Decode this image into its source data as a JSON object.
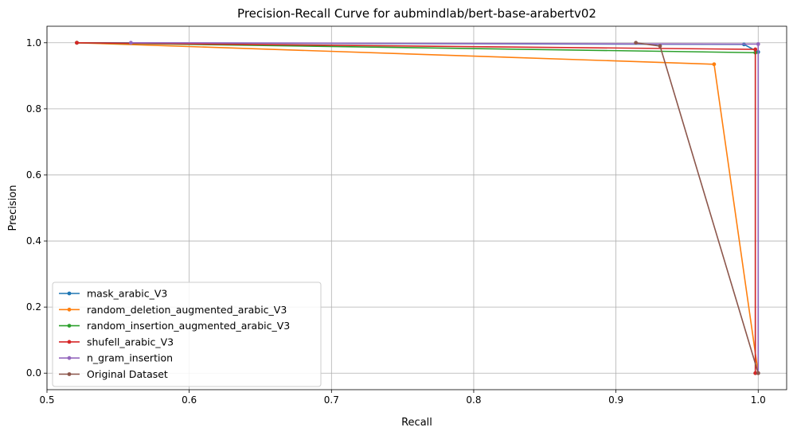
{
  "chart_data": {
    "type": "line",
    "title": "Precision-Recall Curve for aubmindlab/bert-base-arabertv02",
    "xlabel": "Recall",
    "ylabel": "Precision",
    "xlim": [
      0.5,
      1.02
    ],
    "ylim": [
      -0.05,
      1.05
    ],
    "xticks": [
      0.5,
      0.6,
      0.7,
      0.8,
      0.9,
      1.0
    ],
    "xtick_labels": [
      "0.5",
      "0.6",
      "0.7",
      "0.8",
      "0.9",
      "1.0"
    ],
    "yticks": [
      0.0,
      0.2,
      0.4,
      0.6,
      0.8,
      1.0
    ],
    "ytick_labels": [
      "0.0",
      "0.2",
      "0.4",
      "0.6",
      "0.8",
      "1.0"
    ],
    "grid": true,
    "legend_position": "lower-left",
    "series": [
      {
        "name": "mask_arabic_V3",
        "color": "#1f77b4",
        "x": [
          0.521,
          0.99,
          1.0,
          1.0
        ],
        "y": [
          1.0,
          0.995,
          0.972,
          0.0
        ]
      },
      {
        "name": "random_deletion_augmented_arabic_V3",
        "color": "#ff7f0e",
        "x": [
          0.521,
          0.969,
          1.0
        ],
        "y": [
          1.0,
          0.935,
          0.0
        ]
      },
      {
        "name": "random_insertion_augmented_arabic_V3",
        "color": "#2ca02c",
        "x": [
          0.521,
          0.998,
          0.998
        ],
        "y": [
          1.0,
          0.97,
          0.0
        ]
      },
      {
        "name": "shufell_arabic_V3",
        "color": "#d62728",
        "x": [
          0.521,
          0.998,
          0.998
        ],
        "y": [
          1.0,
          0.98,
          0.0
        ]
      },
      {
        "name": "n_gram_insertion",
        "color": "#9467bd",
        "x": [
          0.559,
          1.0,
          1.0
        ],
        "y": [
          1.0,
          0.996,
          0.0
        ]
      },
      {
        "name": "Original Dataset",
        "color": "#8c564b",
        "x": [
          0.914,
          0.931,
          1.0
        ],
        "y": [
          1.0,
          0.99,
          0.0
        ]
      }
    ]
  }
}
